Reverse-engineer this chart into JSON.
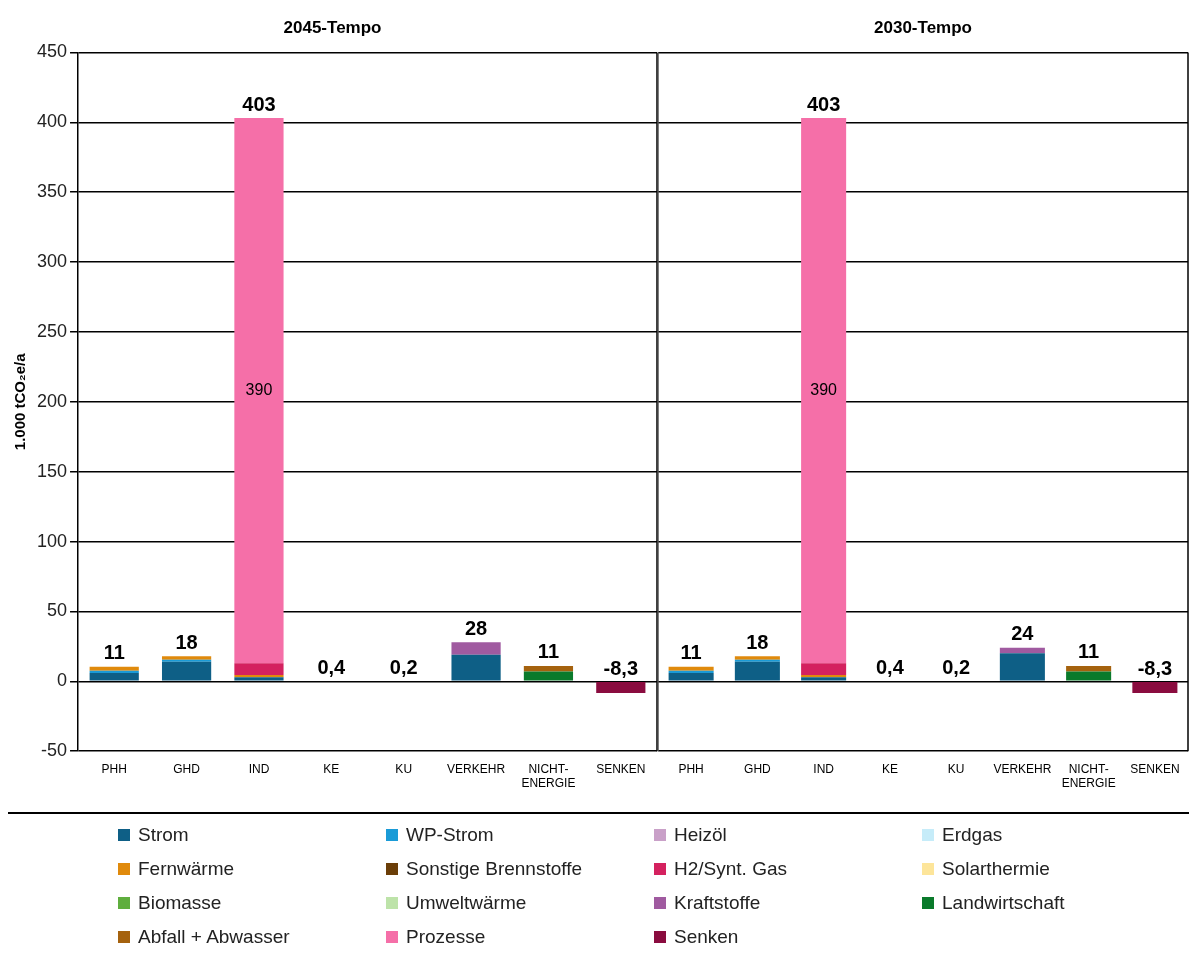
{
  "chart_data": [
    {
      "type": "bar",
      "title": "2045-Tempo",
      "ylabel": "1.000 tCO₂e/a",
      "categories": [
        "PHH",
        "GHD",
        "IND",
        "KE",
        "KU",
        "VERKEHR",
        "NICHT-ENERGIE",
        "SENKEN"
      ],
      "stacked": true,
      "ylim": [
        -50,
        450
      ],
      "yticks": [
        -50,
        0,
        50,
        100,
        150,
        200,
        250,
        300,
        350,
        400,
        450
      ],
      "grid": "y",
      "legend": "bottom",
      "totals": [
        "11",
        "18",
        "403",
        "0,4",
        "0,2",
        "28",
        "11",
        "-8,3"
      ],
      "series": [
        {
          "name": "Strom",
          "color": "#0e5f86",
          "values": [
            6,
            14,
            3,
            null,
            null,
            19,
            null,
            null
          ]
        },
        {
          "name": "WP-Strom",
          "color": "#1a9bd7",
          "values": [
            1.5,
            1.5,
            null,
            null,
            null,
            null,
            null,
            null
          ]
        },
        {
          "name": "Heizöl",
          "color": "#c9a0c8",
          "values": [
            null,
            null,
            null,
            null,
            null,
            null,
            null,
            null
          ]
        },
        {
          "name": "Erdgas",
          "color": "#c6ecf9",
          "values": [
            null,
            null,
            null,
            null,
            null,
            null,
            null,
            null
          ]
        },
        {
          "name": "Fernwärme",
          "color": "#e08a0c",
          "values": [
            3,
            2.5,
            1.5,
            null,
            null,
            null,
            null,
            null
          ]
        },
        {
          "name": "Sonstige Brennstoffe",
          "color": "#6b3e08",
          "values": [
            null,
            null,
            null,
            null,
            null,
            null,
            null,
            null
          ]
        },
        {
          "name": "H2/Synt. Gas",
          "color": "#d4215f",
          "values": [
            null,
            null,
            8.5,
            null,
            null,
            null,
            null,
            null
          ]
        },
        {
          "name": "Solarthermie",
          "color": "#fde59a",
          "values": [
            null,
            null,
            null,
            null,
            null,
            null,
            null,
            null
          ]
        },
        {
          "name": "Biomasse",
          "color": "#5fae3e",
          "values": [
            null,
            null,
            null,
            null,
            null,
            null,
            null,
            null
          ]
        },
        {
          "name": "Umweltwärme",
          "color": "#bde3a9",
          "values": [
            null,
            null,
            null,
            null,
            null,
            null,
            null,
            null
          ]
        },
        {
          "name": "Kraftstoffe",
          "color": "#a05aa0",
          "values": [
            null,
            null,
            null,
            null,
            null,
            9,
            null,
            null
          ]
        },
        {
          "name": "Landwirtschaft",
          "color": "#0a7a2b",
          "values": [
            null,
            null,
            null,
            null,
            null,
            null,
            7,
            null
          ]
        },
        {
          "name": "Abfall + Abwasser",
          "color": "#a5620e",
          "values": [
            null,
            null,
            null,
            null,
            null,
            null,
            4,
            null
          ]
        },
        {
          "name": "Prozesse",
          "color": "#f56fa8",
          "values": [
            null,
            null,
            390,
            null,
            null,
            null,
            null,
            null
          ],
          "value_labels": [
            null,
            null,
            "390",
            null,
            null,
            null,
            null,
            null
          ]
        },
        {
          "name": "Senken",
          "color": "#8a0c3f",
          "values": [
            null,
            null,
            null,
            null,
            null,
            null,
            null,
            -8.3
          ]
        }
      ]
    },
    {
      "type": "bar",
      "title": "2030-Tempo",
      "categories": [
        "PHH",
        "GHD",
        "IND",
        "KE",
        "KU",
        "VERKEHR",
        "NICHT-ENERGIE",
        "SENKEN"
      ],
      "stacked": true,
      "ylim": [
        -50,
        450
      ],
      "yticks": [
        -50,
        0,
        50,
        100,
        150,
        200,
        250,
        300,
        350,
        400,
        450
      ],
      "grid": "y",
      "tick_labels": "x",
      "totals": [
        "11",
        "18",
        "403",
        "0,4",
        "0,2",
        "24",
        "11",
        "-8,3"
      ],
      "series": [
        {
          "color": "#0e5f86",
          "values": [
            6,
            14,
            3,
            null,
            null,
            20,
            null,
            null
          ]
        },
        {
          "color": "#1a9bd7",
          "values": [
            1.5,
            1.5,
            null,
            null,
            null,
            null,
            null,
            null
          ]
        },
        {
          "color": "#c9a0c8",
          "values": [
            null,
            null,
            null,
            null,
            null,
            null,
            null,
            null
          ]
        },
        {
          "color": "#c6ecf9",
          "values": [
            null,
            null,
            null,
            null,
            null,
            null,
            null,
            null
          ]
        },
        {
          "color": "#e08a0c",
          "values": [
            3,
            2.5,
            1.5,
            null,
            null,
            null,
            null,
            null
          ]
        },
        {
          "color": "#6b3e08",
          "values": [
            null,
            null,
            null,
            null,
            null,
            null,
            null,
            null
          ]
        },
        {
          "color": "#d4215f",
          "values": [
            null,
            null,
            8.5,
            null,
            null,
            null,
            null,
            null
          ]
        },
        {
          "color": "#fde59a",
          "values": [
            null,
            null,
            null,
            null,
            null,
            null,
            null,
            null
          ]
        },
        {
          "color": "#5fae3e",
          "values": [
            null,
            null,
            null,
            null,
            null,
            null,
            null,
            null
          ]
        },
        {
          "color": "#bde3a9",
          "values": [
            null,
            null,
            null,
            null,
            null,
            null,
            null,
            null
          ]
        },
        {
          "color": "#a05aa0",
          "values": [
            null,
            null,
            null,
            null,
            null,
            4,
            null,
            null
          ]
        },
        {
          "color": "#0a7a2b",
          "values": [
            null,
            null,
            null,
            null,
            null,
            null,
            7,
            null
          ]
        },
        {
          "color": "#a5620e",
          "values": [
            null,
            null,
            null,
            null,
            null,
            null,
            4,
            null
          ]
        },
        {
          "color": "#f56fa8",
          "values": [
            null,
            null,
            390,
            null,
            null,
            null,
            null,
            null
          ],
          "value_labels": [
            null,
            null,
            "390",
            null,
            null,
            null,
            null,
            null
          ]
        },
        {
          "color": "#8a0c3f",
          "values": [
            null,
            null,
            null,
            null,
            null,
            null,
            null,
            -8.3
          ]
        }
      ]
    }
  ]
}
